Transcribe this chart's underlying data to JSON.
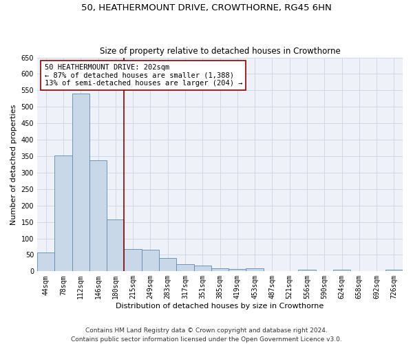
{
  "title": "50, HEATHERMOUNT DRIVE, CROWTHORNE, RG45 6HN",
  "subtitle": "Size of property relative to detached houses in Crowthorne",
  "xlabel": "Distribution of detached houses by size in Crowthorne",
  "ylabel": "Number of detached properties",
  "bar_labels": [
    "44sqm",
    "78sqm",
    "112sqm",
    "146sqm",
    "180sqm",
    "215sqm",
    "249sqm",
    "283sqm",
    "317sqm",
    "351sqm",
    "385sqm",
    "419sqm",
    "453sqm",
    "487sqm",
    "521sqm",
    "556sqm",
    "590sqm",
    "624sqm",
    "658sqm",
    "692sqm",
    "726sqm"
  ],
  "bar_values": [
    57,
    353,
    540,
    337,
    157,
    68,
    66,
    40,
    22,
    17,
    10,
    8,
    9,
    0,
    0,
    4,
    0,
    4,
    0,
    0,
    4
  ],
  "bar_color": "#c8d8e8",
  "bar_edgecolor": "#5a8ab0",
  "vline_color": "#8b0000",
  "annotation_text": "50 HEATHERMOUNT DRIVE: 202sqm\n← 87% of detached houses are smaller (1,388)\n13% of semi-detached houses are larger (204) →",
  "annotation_box_color": "white",
  "annotation_box_edgecolor": "#8b0000",
  "ylim": [
    0,
    650
  ],
  "yticks": [
    0,
    50,
    100,
    150,
    200,
    250,
    300,
    350,
    400,
    450,
    500,
    550,
    600,
    650
  ],
  "grid_color": "#d0d8e8",
  "bg_color": "#eef2f8",
  "footer_text": "Contains HM Land Registry data © Crown copyright and database right 2024.\nContains public sector information licensed under the Open Government Licence v3.0.",
  "title_fontsize": 9.5,
  "subtitle_fontsize": 8.5,
  "ylabel_fontsize": 8,
  "xlabel_fontsize": 8,
  "tick_fontsize": 7,
  "annotation_fontsize": 7.5,
  "footer_fontsize": 6.5
}
